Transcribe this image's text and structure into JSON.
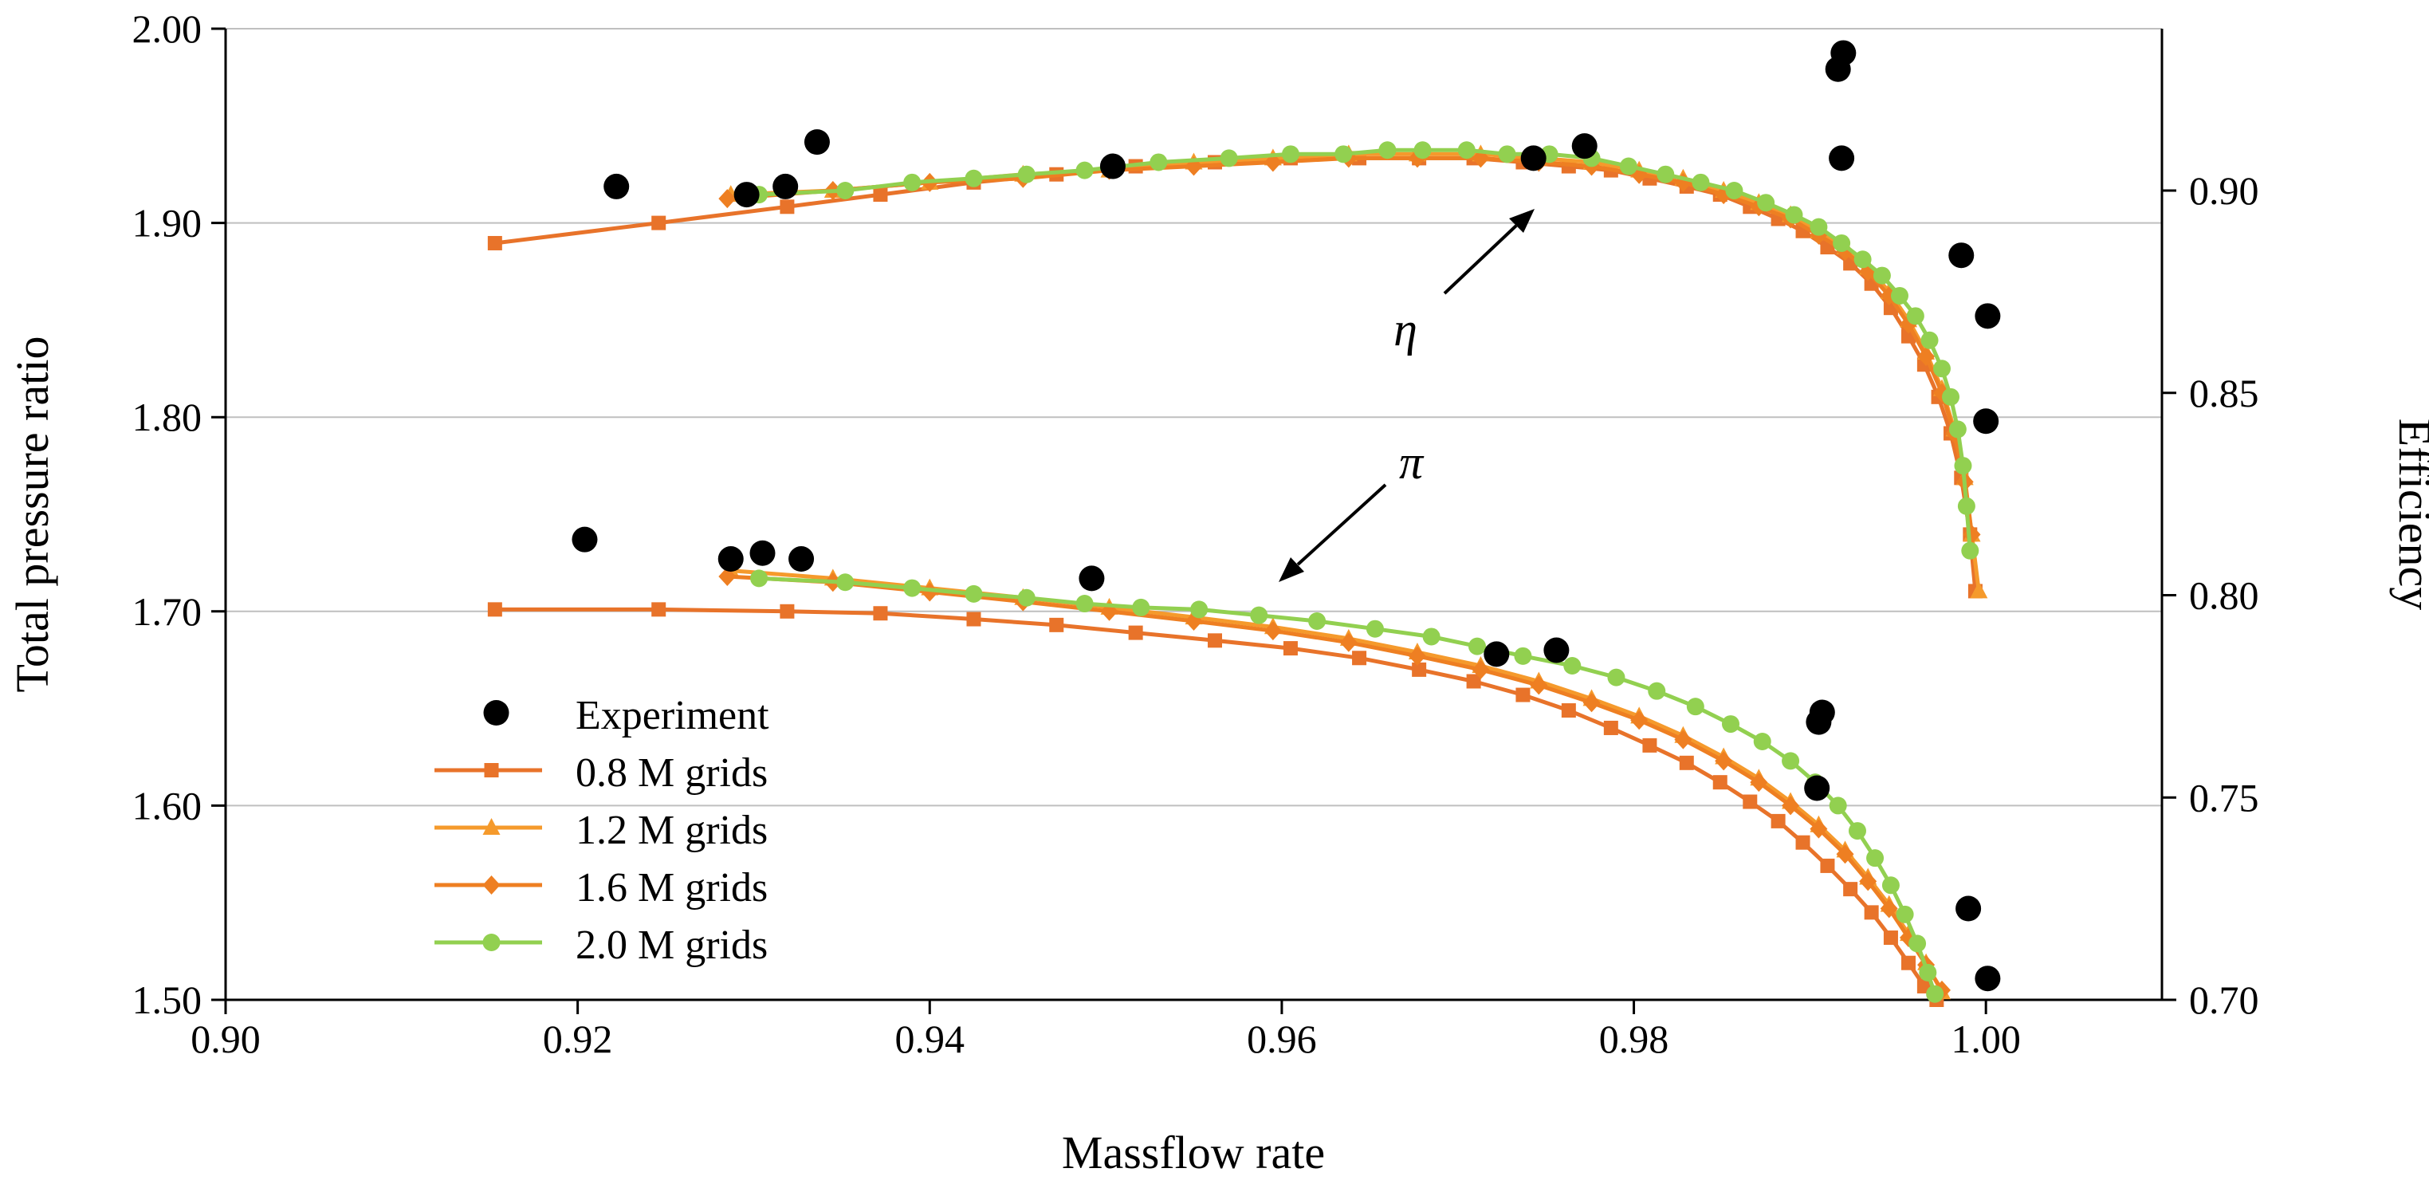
{
  "chart_data": {
    "type": "line",
    "title": "",
    "xlabel": "Massflow rate",
    "ylabel": "Total pressure ratio",
    "y2label": "Efficiency",
    "xlim": [
      0.9,
      1.01
    ],
    "ylim": [
      1.5,
      2.0
    ],
    "y2lim": [
      0.7,
      0.94
    ],
    "x_ticks": [
      "0.90",
      "0.92",
      "0.94",
      "0.96",
      "0.98",
      "1.00"
    ],
    "y_ticks": [
      "1.50",
      "1.60",
      "1.70",
      "1.80",
      "1.90",
      "2.00"
    ],
    "y2_ticks": [
      "0.70",
      "0.75",
      "0.80",
      "0.85",
      "0.90"
    ],
    "legend_position": "bottom-left",
    "annotations": [
      {
        "text": "η",
        "target_series": "efficiency"
      },
      {
        "text": "π",
        "target_series": "pressure ratio"
      }
    ],
    "experiment": {
      "name": "Experiment",
      "pressure_ratio": [
        {
          "x": 0.9204,
          "y": 1.737
        },
        {
          "x": 0.9287,
          "y": 1.727
        },
        {
          "x": 0.9305,
          "y": 1.73
        },
        {
          "x": 0.9327,
          "y": 1.727
        },
        {
          "x": 0.9492,
          "y": 1.717
        },
        {
          "x": 0.9722,
          "y": 1.678
        },
        {
          "x": 0.9756,
          "y": 1.68
        },
        {
          "x": 0.9907,
          "y": 1.648
        },
        {
          "x": 0.9905,
          "y": 1.643
        },
        {
          "x": 0.9904,
          "y": 1.609
        },
        {
          "x": 0.999,
          "y": 1.547
        },
        {
          "x": 1.0001,
          "y": 1.511
        }
      ],
      "efficiency": [
        {
          "x": 0.9222,
          "y": 0.901
        },
        {
          "x": 0.9296,
          "y": 0.899
        },
        {
          "x": 0.9318,
          "y": 0.901
        },
        {
          "x": 0.9336,
          "y": 0.912
        },
        {
          "x": 0.9504,
          "y": 0.906
        },
        {
          "x": 0.9743,
          "y": 0.908
        },
        {
          "x": 0.9772,
          "y": 0.911
        },
        {
          "x": 0.9916,
          "y": 0.93
        },
        {
          "x": 0.9919,
          "y": 0.934
        },
        {
          "x": 0.9918,
          "y": 0.908
        },
        {
          "x": 0.9986,
          "y": 0.884
        },
        {
          "x": 1.0001,
          "y": 0.869
        },
        {
          "x": 1.0,
          "y": 0.843
        }
      ]
    },
    "series": [
      {
        "name": "0.8 M grids",
        "color": "#E8732A",
        "marker": "square",
        "pressure_ratio": [
          {
            "x": 0.9153,
            "y": 1.701
          },
          {
            "x": 0.9246,
            "y": 1.701
          },
          {
            "x": 0.9319,
            "y": 1.7
          },
          {
            "x": 0.9372,
            "y": 1.699
          },
          {
            "x": 0.9425,
            "y": 1.696
          },
          {
            "x": 0.9472,
            "y": 1.693
          },
          {
            "x": 0.9517,
            "y": 1.689
          },
          {
            "x": 0.9562,
            "y": 1.685
          },
          {
            "x": 0.9605,
            "y": 1.681
          },
          {
            "x": 0.9644,
            "y": 1.676
          },
          {
            "x": 0.9678,
            "y": 1.67
          },
          {
            "x": 0.9709,
            "y": 1.664
          },
          {
            "x": 0.9737,
            "y": 1.657
          },
          {
            "x": 0.9763,
            "y": 1.649
          },
          {
            "x": 0.9787,
            "y": 1.64
          },
          {
            "x": 0.9809,
            "y": 1.631
          },
          {
            "x": 0.983,
            "y": 1.622
          },
          {
            "x": 0.9849,
            "y": 1.612
          },
          {
            "x": 0.9866,
            "y": 1.602
          },
          {
            "x": 0.9882,
            "y": 1.592
          },
          {
            "x": 0.9896,
            "y": 1.581
          },
          {
            "x": 0.991,
            "y": 1.569
          },
          {
            "x": 0.9923,
            "y": 1.557
          },
          {
            "x": 0.9935,
            "y": 1.545
          },
          {
            "x": 0.9946,
            "y": 1.532
          },
          {
            "x": 0.9956,
            "y": 1.519
          },
          {
            "x": 0.9965,
            "y": 1.507
          },
          {
            "x": 0.9972,
            "y": 1.5
          }
        ],
        "efficiency": [
          {
            "x": 0.9153,
            "y": 0.887
          },
          {
            "x": 0.9246,
            "y": 0.892
          },
          {
            "x": 0.9319,
            "y": 0.896
          },
          {
            "x": 0.9372,
            "y": 0.899
          },
          {
            "x": 0.9425,
            "y": 0.902
          },
          {
            "x": 0.9472,
            "y": 0.904
          },
          {
            "x": 0.9517,
            "y": 0.906
          },
          {
            "x": 0.9562,
            "y": 0.907
          },
          {
            "x": 0.9605,
            "y": 0.908
          },
          {
            "x": 0.9644,
            "y": 0.908
          },
          {
            "x": 0.9678,
            "y": 0.908
          },
          {
            "x": 0.9709,
            "y": 0.908
          },
          {
            "x": 0.9737,
            "y": 0.907
          },
          {
            "x": 0.9763,
            "y": 0.906
          },
          {
            "x": 0.9787,
            "y": 0.905
          },
          {
            "x": 0.9809,
            "y": 0.903
          },
          {
            "x": 0.983,
            "y": 0.901
          },
          {
            "x": 0.9849,
            "y": 0.899
          },
          {
            "x": 0.9866,
            "y": 0.896
          },
          {
            "x": 0.9882,
            "y": 0.893
          },
          {
            "x": 0.9896,
            "y": 0.89
          },
          {
            "x": 0.991,
            "y": 0.886
          },
          {
            "x": 0.9923,
            "y": 0.882
          },
          {
            "x": 0.9935,
            "y": 0.877
          },
          {
            "x": 0.9946,
            "y": 0.871
          },
          {
            "x": 0.9956,
            "y": 0.864
          },
          {
            "x": 0.9965,
            "y": 0.857
          },
          {
            "x": 0.9973,
            "y": 0.849
          },
          {
            "x": 0.998,
            "y": 0.84
          },
          {
            "x": 0.9986,
            "y": 0.829
          },
          {
            "x": 0.9991,
            "y": 0.815
          },
          {
            "x": 0.9994,
            "y": 0.801
          }
        ]
      },
      {
        "name": "1.2 M grids",
        "color": "#F59A2C",
        "marker": "triangle",
        "pressure_ratio": [
          {
            "x": 0.9287,
            "y": 1.721
          },
          {
            "x": 0.9345,
            "y": 1.717
          },
          {
            "x": 0.94,
            "y": 1.712
          },
          {
            "x": 0.9453,
            "y": 1.707
          },
          {
            "x": 0.9502,
            "y": 1.702
          },
          {
            "x": 0.955,
            "y": 1.697
          },
          {
            "x": 0.9595,
            "y": 1.692
          },
          {
            "x": 0.9638,
            "y": 1.686
          },
          {
            "x": 0.9677,
            "y": 1.679
          },
          {
            "x": 0.9713,
            "y": 1.672
          },
          {
            "x": 0.9746,
            "y": 1.664
          },
          {
            "x": 0.9776,
            "y": 1.655
          },
          {
            "x": 0.9803,
            "y": 1.646
          },
          {
            "x": 0.9828,
            "y": 1.636
          },
          {
            "x": 0.9851,
            "y": 1.625
          },
          {
            "x": 0.9871,
            "y": 1.614
          },
          {
            "x": 0.9889,
            "y": 1.602
          },
          {
            "x": 0.9905,
            "y": 1.59
          },
          {
            "x": 0.992,
            "y": 1.577
          },
          {
            "x": 0.9933,
            "y": 1.563
          },
          {
            "x": 0.9945,
            "y": 1.549
          },
          {
            "x": 0.9956,
            "y": 1.534
          },
          {
            "x": 0.9966,
            "y": 1.519
          },
          {
            "x": 0.9975,
            "y": 1.504
          }
        ],
        "efficiency": [
          {
            "x": 0.9287,
            "y": 0.899
          },
          {
            "x": 0.9345,
            "y": 0.9
          },
          {
            "x": 0.94,
            "y": 0.902
          },
          {
            "x": 0.9453,
            "y": 0.904
          },
          {
            "x": 0.9502,
            "y": 0.905
          },
          {
            "x": 0.955,
            "y": 0.907
          },
          {
            "x": 0.9595,
            "y": 0.908
          },
          {
            "x": 0.9638,
            "y": 0.909
          },
          {
            "x": 0.9677,
            "y": 0.909
          },
          {
            "x": 0.9713,
            "y": 0.909
          },
          {
            "x": 0.9746,
            "y": 0.908
          },
          {
            "x": 0.9776,
            "y": 0.907
          },
          {
            "x": 0.9803,
            "y": 0.905
          },
          {
            "x": 0.9828,
            "y": 0.903
          },
          {
            "x": 0.9851,
            "y": 0.9
          },
          {
            "x": 0.9871,
            "y": 0.897
          },
          {
            "x": 0.9889,
            "y": 0.894
          },
          {
            "x": 0.9905,
            "y": 0.89
          },
          {
            "x": 0.992,
            "y": 0.886
          },
          {
            "x": 0.9933,
            "y": 0.881
          },
          {
            "x": 0.9945,
            "y": 0.875
          },
          {
            "x": 0.9956,
            "y": 0.868
          },
          {
            "x": 0.9966,
            "y": 0.86
          },
          {
            "x": 0.9975,
            "y": 0.851
          },
          {
            "x": 0.9982,
            "y": 0.841
          },
          {
            "x": 0.9988,
            "y": 0.829
          },
          {
            "x": 0.9992,
            "y": 0.815
          },
          {
            "x": 0.9996,
            "y": 0.801
          }
        ]
      },
      {
        "name": "1.6 M grids",
        "color": "#EE7F22",
        "marker": "diamond",
        "pressure_ratio": [
          {
            "x": 0.9285,
            "y": 1.718
          },
          {
            "x": 0.9345,
            "y": 1.715
          },
          {
            "x": 0.94,
            "y": 1.71
          },
          {
            "x": 0.9453,
            "y": 1.705
          },
          {
            "x": 0.9502,
            "y": 1.7
          },
          {
            "x": 0.955,
            "y": 1.695
          },
          {
            "x": 0.9595,
            "y": 1.69
          },
          {
            "x": 0.9638,
            "y": 1.684
          },
          {
            "x": 0.9677,
            "y": 1.677
          },
          {
            "x": 0.9713,
            "y": 1.67
          },
          {
            "x": 0.9746,
            "y": 1.662
          },
          {
            "x": 0.9776,
            "y": 1.653
          },
          {
            "x": 0.9803,
            "y": 1.644
          },
          {
            "x": 0.9828,
            "y": 1.634
          },
          {
            "x": 0.9851,
            "y": 1.623
          },
          {
            "x": 0.9871,
            "y": 1.612
          },
          {
            "x": 0.9889,
            "y": 1.6
          },
          {
            "x": 0.9905,
            "y": 1.588
          },
          {
            "x": 0.992,
            "y": 1.575
          },
          {
            "x": 0.9933,
            "y": 1.561
          },
          {
            "x": 0.9945,
            "y": 1.547
          },
          {
            "x": 0.9956,
            "y": 1.532
          },
          {
            "x": 0.9966,
            "y": 1.518
          },
          {
            "x": 0.9975,
            "y": 1.505
          }
        ],
        "efficiency": [
          {
            "x": 0.9285,
            "y": 0.898
          },
          {
            "x": 0.9345,
            "y": 0.9
          },
          {
            "x": 0.94,
            "y": 0.902
          },
          {
            "x": 0.9453,
            "y": 0.903
          },
          {
            "x": 0.9502,
            "y": 0.905
          },
          {
            "x": 0.955,
            "y": 0.906
          },
          {
            "x": 0.9595,
            "y": 0.907
          },
          {
            "x": 0.9638,
            "y": 0.908
          },
          {
            "x": 0.9677,
            "y": 0.908
          },
          {
            "x": 0.9713,
            "y": 0.908
          },
          {
            "x": 0.9746,
            "y": 0.907
          },
          {
            "x": 0.9776,
            "y": 0.906
          },
          {
            "x": 0.9803,
            "y": 0.904
          },
          {
            "x": 0.9828,
            "y": 0.902
          },
          {
            "x": 0.9851,
            "y": 0.899
          },
          {
            "x": 0.9871,
            "y": 0.896
          },
          {
            "x": 0.9889,
            "y": 0.893
          },
          {
            "x": 0.9905,
            "y": 0.889
          },
          {
            "x": 0.992,
            "y": 0.885
          },
          {
            "x": 0.9933,
            "y": 0.88
          },
          {
            "x": 0.9945,
            "y": 0.874
          },
          {
            "x": 0.9956,
            "y": 0.867
          },
          {
            "x": 0.9966,
            "y": 0.859
          },
          {
            "x": 0.9975,
            "y": 0.85
          },
          {
            "x": 0.9982,
            "y": 0.84
          },
          {
            "x": 0.9988,
            "y": 0.828
          },
          {
            "x": 0.9992,
            "y": 0.815
          }
        ]
      },
      {
        "name": "2.0 M grids",
        "color": "#92D050",
        "marker": "circle",
        "pressure_ratio": [
          {
            "x": 0.9303,
            "y": 1.717
          },
          {
            "x": 0.9352,
            "y": 1.715
          },
          {
            "x": 0.939,
            "y": 1.712
          },
          {
            "x": 0.9425,
            "y": 1.709
          },
          {
            "x": 0.9455,
            "y": 1.707
          },
          {
            "x": 0.9488,
            "y": 1.704
          },
          {
            "x": 0.952,
            "y": 1.702
          },
          {
            "x": 0.9553,
            "y": 1.701
          },
          {
            "x": 0.9587,
            "y": 1.698
          },
          {
            "x": 0.962,
            "y": 1.695
          },
          {
            "x": 0.9653,
            "y": 1.691
          },
          {
            "x": 0.9685,
            "y": 1.687
          },
          {
            "x": 0.9711,
            "y": 1.682
          },
          {
            "x": 0.9737,
            "y": 1.677
          },
          {
            "x": 0.9765,
            "y": 1.672
          },
          {
            "x": 0.979,
            "y": 1.666
          },
          {
            "x": 0.9813,
            "y": 1.659
          },
          {
            "x": 0.9835,
            "y": 1.651
          },
          {
            "x": 0.9855,
            "y": 1.642
          },
          {
            "x": 0.9873,
            "y": 1.633
          },
          {
            "x": 0.9889,
            "y": 1.623
          },
          {
            "x": 0.9903,
            "y": 1.612
          },
          {
            "x": 0.9916,
            "y": 1.6
          },
          {
            "x": 0.9927,
            "y": 1.587
          },
          {
            "x": 0.9937,
            "y": 1.573
          },
          {
            "x": 0.9946,
            "y": 1.559
          },
          {
            "x": 0.9954,
            "y": 1.544
          },
          {
            "x": 0.9961,
            "y": 1.529
          },
          {
            "x": 0.9967,
            "y": 1.514
          },
          {
            "x": 0.9971,
            "y": 1.503
          }
        ],
        "efficiency": [
          {
            "x": 0.9303,
            "y": 0.899
          },
          {
            "x": 0.9352,
            "y": 0.9
          },
          {
            "x": 0.939,
            "y": 0.902
          },
          {
            "x": 0.9425,
            "y": 0.903
          },
          {
            "x": 0.9455,
            "y": 0.904
          },
          {
            "x": 0.9488,
            "y": 0.905
          },
          {
            "x": 0.953,
            "y": 0.907
          },
          {
            "x": 0.957,
            "y": 0.908
          },
          {
            "x": 0.9605,
            "y": 0.909
          },
          {
            "x": 0.9635,
            "y": 0.909
          },
          {
            "x": 0.966,
            "y": 0.91
          },
          {
            "x": 0.968,
            "y": 0.91
          },
          {
            "x": 0.9705,
            "y": 0.91
          },
          {
            "x": 0.9728,
            "y": 0.909
          },
          {
            "x": 0.9752,
            "y": 0.909
          },
          {
            "x": 0.9776,
            "y": 0.908
          },
          {
            "x": 0.9797,
            "y": 0.906
          },
          {
            "x": 0.9818,
            "y": 0.904
          },
          {
            "x": 0.9838,
            "y": 0.902
          },
          {
            "x": 0.9857,
            "y": 0.9
          },
          {
            "x": 0.9875,
            "y": 0.897
          },
          {
            "x": 0.9891,
            "y": 0.894
          },
          {
            "x": 0.9905,
            "y": 0.891
          },
          {
            "x": 0.9918,
            "y": 0.887
          },
          {
            "x": 0.993,
            "y": 0.883
          },
          {
            "x": 0.9941,
            "y": 0.879
          },
          {
            "x": 0.9951,
            "y": 0.874
          },
          {
            "x": 0.996,
            "y": 0.869
          },
          {
            "x": 0.9968,
            "y": 0.863
          },
          {
            "x": 0.9975,
            "y": 0.856
          },
          {
            "x": 0.998,
            "y": 0.849
          },
          {
            "x": 0.9984,
            "y": 0.841
          },
          {
            "x": 0.9987,
            "y": 0.832
          },
          {
            "x": 0.9989,
            "y": 0.822
          },
          {
            "x": 0.9991,
            "y": 0.811
          }
        ]
      }
    ]
  }
}
